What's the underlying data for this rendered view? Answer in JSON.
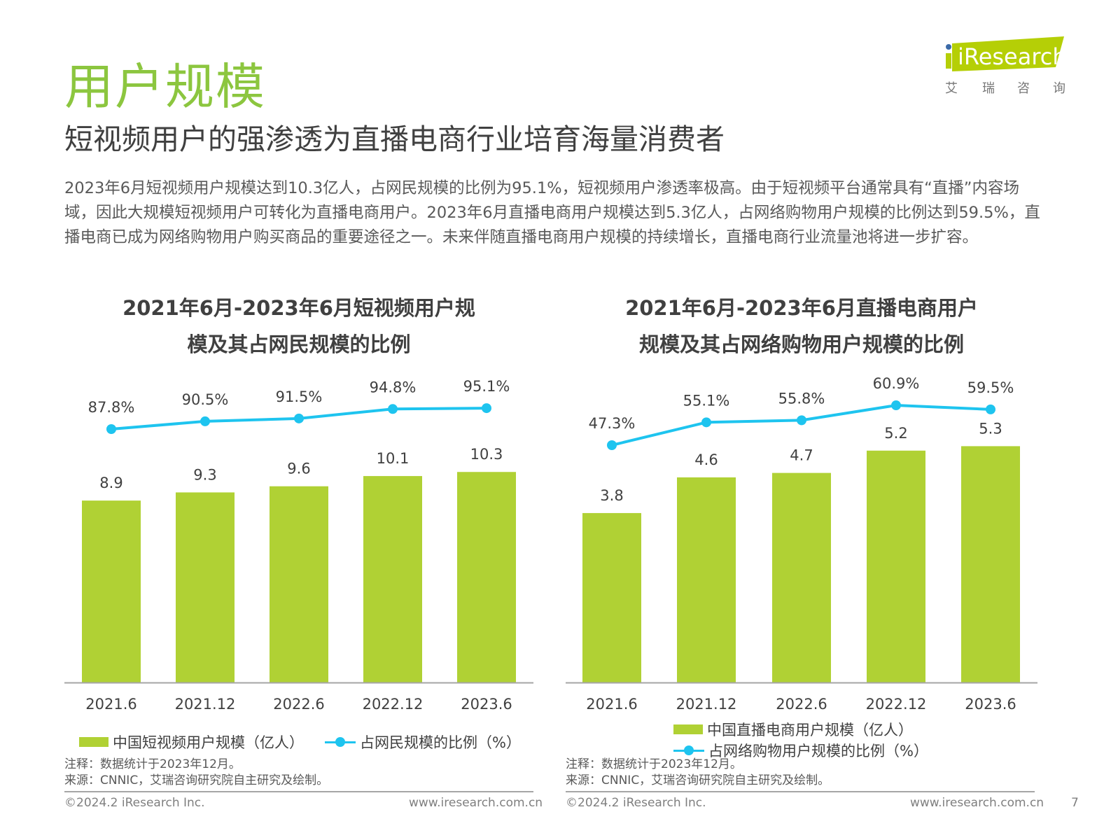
{
  "header": {
    "title": "用户规模",
    "subtitle": "短视频用户的强渗透为直播电商行业培育海量消费者",
    "logo_text": "iResearch",
    "logo_sub": [
      "艾",
      "瑞",
      "咨",
      "询"
    ]
  },
  "body_text": "2023年6月短视频用户规模达到10.3亿人，占网民规模的比例为95.1%，短视频用户渗透率极高。由于短视频平台通常具有“直播”内容场域，因此大规模短视频用户可转化为直播电商用户。2023年6月直播电商用户规模达到5.3亿人，占网络购物用户规模的比例达到59.5%，直播电商已成为网络购物用户购买商品的重要途径之一。未来伴随直播电商用户规模的持续增长，直播电商行业流量池将进一步扩容。",
  "colors": {
    "bar": "#b0d134",
    "line": "#1ec4ef",
    "accent": "#8cc63f"
  },
  "chart_data": [
    {
      "type": "bar+line",
      "title_lines": [
        "2021年6月-2023年6月短视频用户规",
        "模及其占网民规模的比例"
      ],
      "categories": [
        "2021.6",
        "2021.12",
        "2022.6",
        "2022.12",
        "2023.6"
      ],
      "series": [
        {
          "name": "中国短视频用户规模（亿人）",
          "type": "bar",
          "values": [
            8.9,
            9.3,
            9.6,
            10.1,
            10.3
          ],
          "labels": [
            "8.9",
            "9.3",
            "9.6",
            "10.1",
            "10.3"
          ]
        },
        {
          "name": "占网民规模的比例（%）",
          "type": "line",
          "values": [
            87.8,
            90.5,
            91.5,
            94.8,
            95.1
          ],
          "labels": [
            "87.8%",
            "90.5%",
            "91.5%",
            "94.8%",
            "95.1%"
          ]
        }
      ],
      "legend": "bottom",
      "grid": false
    },
    {
      "type": "bar+line",
      "title_lines": [
        "2021年6月-2023年6月直播电商用户",
        "规模及其占网络购物用户规模的比例"
      ],
      "categories": [
        "2021.6",
        "2021.12",
        "2022.6",
        "2022.12",
        "2023.6"
      ],
      "series": [
        {
          "name": "中国直播电商用户规模（亿人）",
          "type": "bar",
          "values": [
            3.8,
            4.6,
            4.7,
            5.2,
            5.3
          ],
          "labels": [
            "3.8",
            "4.6",
            "4.7",
            "5.2",
            "5.3"
          ]
        },
        {
          "name": "占网络购物用户规模的比例（%）",
          "type": "line",
          "values": [
            47.3,
            55.1,
            55.8,
            60.9,
            59.5
          ],
          "labels": [
            "47.3%",
            "55.1%",
            "55.8%",
            "60.9%",
            "59.5%"
          ]
        }
      ],
      "legend": "bottom",
      "grid": false
    }
  ],
  "notes": {
    "note": "注释：数据统计于2023年12月。",
    "source": "来源：CNNIC，艾瑞咨询研究院自主研究及绘制。"
  },
  "footer": {
    "copyright": "©2024.2 iResearch Inc.",
    "website": "www.iresearch.com.cn",
    "page_number": "7"
  }
}
